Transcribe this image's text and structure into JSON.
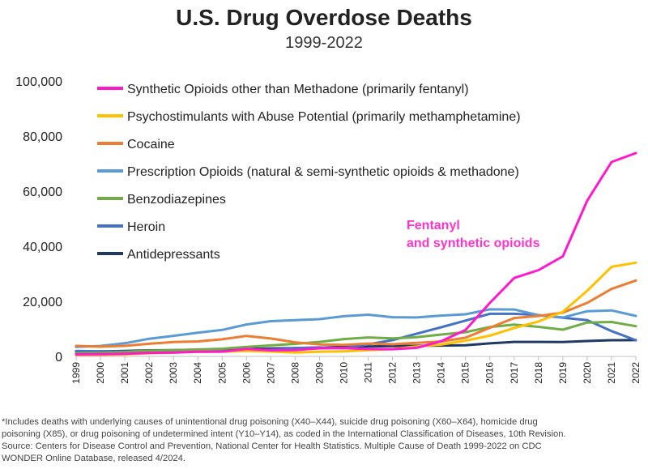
{
  "header": {
    "title": "U.S. Drug Overdose Deaths",
    "subtitle": "1999-2022"
  },
  "annotation": {
    "line1": "Fentanyl",
    "line2": "and synthetic opioids",
    "color": "#ff33cc"
  },
  "footnote": {
    "lines": [
      "*Includes deaths with underlying causes of unintentional drug poisoning (X40–X44), suicide drug poisoning (X60–X64), homicide drug",
      "poisoning (X85), or drug poisoning of undetermined intent (Y10–Y14), as coded in the International Classification of Diseases, 10th Revision.",
      "Source: Centers for Disease Control and Prevention, National Center for Health Statistics. Multiple Cause of Death 1999-2022 on CDC",
      "WONDER Online Database, released 4/2024."
    ]
  },
  "chart_data": {
    "type": "line",
    "ylim": [
      0,
      100000
    ],
    "y_ticks": [
      "0",
      "20,000",
      "40,000",
      "60,000",
      "80,000",
      "100,000"
    ],
    "y_tick_values": [
      0,
      20000,
      40000,
      60000,
      80000,
      100000
    ],
    "x": [
      "1999",
      "2000",
      "2001",
      "2002",
      "2003",
      "2004",
      "2005",
      "2006",
      "2007",
      "2008",
      "2009",
      "2010",
      "2011",
      "2012",
      "2013",
      "2014",
      "2015",
      "2016",
      "2017",
      "2018",
      "2019",
      "2020",
      "2021",
      "2022"
    ],
    "grid": false,
    "legend_position": "top-left",
    "series": [
      {
        "name": "Synthetic Opioids other than Methadone (primarily fentanyl)",
        "color": "#ff19cc",
        "values": [
          730,
          782,
          957,
          1295,
          1400,
          1664,
          1742,
          2707,
          2213,
          2306,
          2946,
          3007,
          2666,
          2628,
          3105,
          5544,
          9580,
          19413,
          28466,
          31335,
          36359,
          56516,
          70601,
          73838
        ]
      },
      {
        "name": "Psychostimulants with Abuse Potential (primarily methamphetamine)",
        "color": "#ffc000",
        "values": [
          547,
          578,
          728,
          1167,
          1353,
          1664,
          1742,
          2000,
          1757,
          1426,
          1705,
          1854,
          2266,
          2635,
          3627,
          4298,
          5716,
          7542,
          10333,
          12676,
          16167,
          23837,
          32537,
          34022
        ]
      },
      {
        "name": "Cocaine",
        "color": "#ed7d31",
        "values": [
          3822,
          3544,
          3833,
          4599,
          5199,
          5443,
          6208,
          7448,
          6512,
          5129,
          4350,
          4183,
          4681,
          4404,
          4944,
          5415,
          6784,
          10375,
          13942,
          14666,
          15883,
          19447,
          24486,
          27569
        ]
      },
      {
        "name": "Prescription Opioids (natural & semi-synthetic opioids & methadone)",
        "color": "#5b9bd5",
        "values": [
          3442,
          3785,
          4770,
          6407,
          7456,
          8577,
          9612,
          11589,
          12796,
          13149,
          13523,
          14583,
          15140,
          14240,
          14145,
          14838,
          15281,
          17087,
          17029,
          14975,
          14139,
          16416,
          16706,
          14716
        ]
      },
      {
        "name": "Benzodiazepines",
        "color": "#70ad47",
        "values": [
          1135,
          1298,
          1594,
          2076,
          2248,
          2525,
          2800,
          3468,
          4006,
          4549,
          5257,
          6285,
          6872,
          6524,
          6973,
          7945,
          8791,
          10684,
          11537,
          10724,
          9711,
          12290,
          12499,
          10964
        ]
      },
      {
        "name": "Heroin",
        "color": "#4472c4",
        "values": [
          1960,
          1842,
          1779,
          2089,
          2080,
          1878,
          2009,
          2088,
          2399,
          3041,
          3278,
          3036,
          4397,
          5925,
          8257,
          10574,
          12989,
          15469,
          15482,
          14996,
          14019,
          13165,
          9173,
          5871
        ]
      },
      {
        "name": "Antidepressants",
        "color": "#1f3864",
        "values": [
          1749,
          1810,
          1979,
          2213,
          2271,
          2410,
          2506,
          2742,
          2887,
          3028,
          3216,
          3481,
          3619,
          3777,
          3844,
          3935,
          4067,
          4744,
          5252,
          5269,
          5193,
          5589,
          5876,
          5920
        ]
      }
    ]
  }
}
